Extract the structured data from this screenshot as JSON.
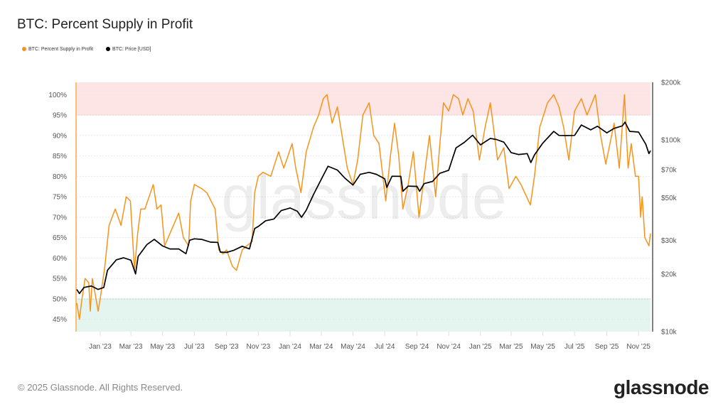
{
  "title": "BTC: Percent Supply in Profit",
  "legend": [
    {
      "label": "BTC: Percent Supply in Profit",
      "color": "#f7931a"
    },
    {
      "label": "BTC: Price [USD]",
      "color": "#000000"
    }
  ],
  "watermark": "glassnode",
  "footer": {
    "copyright": "© 2025 Glassnode. All Rights Reserved.",
    "logo": "glassnode"
  },
  "chart_data": {
    "type": "line",
    "title": "BTC: Percent Supply in Profit",
    "grid": true,
    "legend_position": "top-left",
    "x_range": [
      "2022-11-17",
      "2025-11-24"
    ],
    "x_ticks": [
      "Jan '23",
      "Mar '23",
      "May '23",
      "Jul '23",
      "Sep '23",
      "Nov '23",
      "Jan '24",
      "Mar '24",
      "May '24",
      "Jul '24",
      "Sep '24",
      "Nov '24",
      "Jan '25",
      "Mar '25",
      "May '25",
      "Jul '25",
      "Sep '25",
      "Nov '25"
    ],
    "x_tick_dates": [
      "2023-01-01",
      "2023-03-01",
      "2023-05-01",
      "2023-07-01",
      "2023-09-01",
      "2023-11-01",
      "2024-01-01",
      "2024-03-01",
      "2024-05-01",
      "2024-07-01",
      "2024-09-01",
      "2024-11-01",
      "2025-01-01",
      "2025-03-01",
      "2025-05-01",
      "2025-07-01",
      "2025-09-01",
      "2025-11-01"
    ],
    "y_left": {
      "range": [
        42,
        103
      ],
      "ticks": [
        45,
        50,
        55,
        60,
        65,
        70,
        75,
        80,
        85,
        90,
        95,
        100
      ],
      "tick_labels": [
        "45%",
        "50%",
        "55%",
        "60%",
        "65%",
        "70%",
        "75%",
        "80%",
        "85%",
        "90%",
        "95%",
        "100%"
      ]
    },
    "y_right": {
      "scale": "log",
      "range": [
        10000,
        200000
      ],
      "ticks": [
        10000,
        20000,
        30000,
        50000,
        70000,
        100000,
        200000
      ],
      "tick_labels": [
        "$10k",
        "$20k",
        "$30k",
        "$50k",
        "$70k",
        "$100k",
        "$200k"
      ]
    },
    "bands": [
      {
        "axis": "left",
        "from": 95,
        "to": 103,
        "color": "#fde5e5",
        "edge": "#f7c6c6"
      },
      {
        "axis": "left",
        "from": 42,
        "to": 50,
        "color": "#e4f5ef",
        "edge": "#9edcc6"
      }
    ],
    "series": [
      {
        "name": "BTC: Percent Supply in Profit",
        "axis": "left",
        "color": "#f7931a",
        "points": [
          [
            "2022-11-17",
            49
          ],
          [
            "2022-11-22",
            45
          ],
          [
            "2022-11-27",
            50
          ],
          [
            "2022-12-03",
            55
          ],
          [
            "2022-12-10",
            54
          ],
          [
            "2022-12-13",
            47
          ],
          [
            "2022-12-17",
            55
          ],
          [
            "2022-12-24",
            50
          ],
          [
            "2022-12-28",
            47
          ],
          [
            "2023-01-01",
            50
          ],
          [
            "2023-01-10",
            58
          ],
          [
            "2023-01-18",
            68
          ],
          [
            "2023-01-30",
            72
          ],
          [
            "2023-02-10",
            68
          ],
          [
            "2023-02-20",
            75
          ],
          [
            "2023-02-28",
            74
          ],
          [
            "2023-03-08",
            57
          ],
          [
            "2023-03-14",
            66
          ],
          [
            "2023-03-20",
            72
          ],
          [
            "2023-03-28",
            72
          ],
          [
            "2023-04-13",
            78
          ],
          [
            "2023-04-20",
            72
          ],
          [
            "2023-04-28",
            73
          ],
          [
            "2023-05-05",
            63
          ],
          [
            "2023-05-15",
            66
          ],
          [
            "2023-06-01",
            71
          ],
          [
            "2023-06-10",
            65
          ],
          [
            "2023-06-20",
            63
          ],
          [
            "2023-06-24",
            74
          ],
          [
            "2023-07-01",
            78
          ],
          [
            "2023-07-15",
            77
          ],
          [
            "2023-07-25",
            76
          ],
          [
            "2023-08-10",
            72
          ],
          [
            "2023-08-17",
            62
          ],
          [
            "2023-08-25",
            61
          ],
          [
            "2023-09-01",
            62
          ],
          [
            "2023-09-12",
            58
          ],
          [
            "2023-09-20",
            57
          ],
          [
            "2023-10-01",
            62
          ],
          [
            "2023-10-10",
            63
          ],
          [
            "2023-10-20",
            64
          ],
          [
            "2023-10-25",
            76
          ],
          [
            "2023-11-01",
            80
          ],
          [
            "2023-11-10",
            81
          ],
          [
            "2023-11-25",
            80
          ],
          [
            "2023-12-05",
            84
          ],
          [
            "2023-12-10",
            86
          ],
          [
            "2023-12-20",
            82
          ],
          [
            "2024-01-05",
            88
          ],
          [
            "2024-01-12",
            82
          ],
          [
            "2024-01-22",
            76
          ],
          [
            "2024-02-01",
            86
          ],
          [
            "2024-02-15",
            92
          ],
          [
            "2024-02-25",
            95
          ],
          [
            "2024-03-05",
            99
          ],
          [
            "2024-03-12",
            100
          ],
          [
            "2024-03-22",
            93
          ],
          [
            "2024-04-01",
            97
          ],
          [
            "2024-04-15",
            86
          ],
          [
            "2024-04-20",
            82
          ],
          [
            "2024-05-01",
            78
          ],
          [
            "2024-05-10",
            84
          ],
          [
            "2024-05-20",
            95
          ],
          [
            "2024-06-01",
            98
          ],
          [
            "2024-06-10",
            90
          ],
          [
            "2024-06-20",
            88
          ],
          [
            "2024-07-03",
            74
          ],
          [
            "2024-07-12",
            85
          ],
          [
            "2024-07-20",
            93
          ],
          [
            "2024-07-28",
            85
          ],
          [
            "2024-08-05",
            72
          ],
          [
            "2024-08-15",
            78
          ],
          [
            "2024-08-25",
            86
          ],
          [
            "2024-09-05",
            70
          ],
          [
            "2024-09-15",
            80
          ],
          [
            "2024-09-25",
            90
          ],
          [
            "2024-10-07",
            75
          ],
          [
            "2024-10-15",
            88
          ],
          [
            "2024-10-22",
            98
          ],
          [
            "2024-11-01",
            96
          ],
          [
            "2024-11-10",
            100
          ],
          [
            "2024-11-20",
            99
          ],
          [
            "2024-11-28",
            95
          ],
          [
            "2024-12-08",
            99
          ],
          [
            "2024-12-18",
            96
          ],
          [
            "2024-12-30",
            84
          ],
          [
            "2025-01-10",
            92
          ],
          [
            "2025-01-20",
            98
          ],
          [
            "2025-02-03",
            84
          ],
          [
            "2025-02-15",
            87
          ],
          [
            "2025-02-25",
            77
          ],
          [
            "2025-03-10",
            80
          ],
          [
            "2025-03-20",
            78
          ],
          [
            "2025-04-07",
            73
          ],
          [
            "2025-04-15",
            80
          ],
          [
            "2025-04-25",
            92
          ],
          [
            "2025-05-10",
            98
          ],
          [
            "2025-05-22",
            100
          ],
          [
            "2025-06-01",
            97
          ],
          [
            "2025-06-10",
            92
          ],
          [
            "2025-06-20",
            84
          ],
          [
            "2025-07-01",
            96
          ],
          [
            "2025-07-14",
            99
          ],
          [
            "2025-07-25",
            95
          ],
          [
            "2025-08-10",
            100
          ],
          [
            "2025-08-20",
            90
          ],
          [
            "2025-08-30",
            83
          ],
          [
            "2025-09-15",
            93
          ],
          [
            "2025-09-25",
            82
          ],
          [
            "2025-10-05",
            100
          ],
          [
            "2025-10-12",
            82
          ],
          [
            "2025-10-18",
            88
          ],
          [
            "2025-10-26",
            80
          ],
          [
            "2025-11-01",
            80
          ],
          [
            "2025-11-05",
            70
          ],
          [
            "2025-11-08",
            75
          ],
          [
            "2025-11-13",
            65
          ],
          [
            "2025-11-21",
            63
          ],
          [
            "2025-11-24",
            66
          ]
        ]
      },
      {
        "name": "BTC: Price [USD]",
        "axis": "right",
        "color": "#000000",
        "points": [
          [
            "2022-11-17",
            16600
          ],
          [
            "2022-11-22",
            15800
          ],
          [
            "2022-12-01",
            17000
          ],
          [
            "2022-12-15",
            17300
          ],
          [
            "2022-12-28",
            16600
          ],
          [
            "2023-01-08",
            17000
          ],
          [
            "2023-01-15",
            20900
          ],
          [
            "2023-02-01",
            23700
          ],
          [
            "2023-02-15",
            24300
          ],
          [
            "2023-03-01",
            23600
          ],
          [
            "2023-03-10",
            20000
          ],
          [
            "2023-03-15",
            24700
          ],
          [
            "2023-04-01",
            28500
          ],
          [
            "2023-04-15",
            30300
          ],
          [
            "2023-05-01",
            28000
          ],
          [
            "2023-05-15",
            27000
          ],
          [
            "2023-06-01",
            27000
          ],
          [
            "2023-06-15",
            25500
          ],
          [
            "2023-06-22",
            30000
          ],
          [
            "2023-07-01",
            30500
          ],
          [
            "2023-07-15",
            30300
          ],
          [
            "2023-08-01",
            29300
          ],
          [
            "2023-08-15",
            29200
          ],
          [
            "2023-08-20",
            26000
          ],
          [
            "2023-09-01",
            25900
          ],
          [
            "2023-09-15",
            26600
          ],
          [
            "2023-10-01",
            27900
          ],
          [
            "2023-10-15",
            27000
          ],
          [
            "2023-10-25",
            34500
          ],
          [
            "2023-11-01",
            35400
          ],
          [
            "2023-11-15",
            37900
          ],
          [
            "2023-12-01",
            38700
          ],
          [
            "2023-12-15",
            42800
          ],
          [
            "2024-01-01",
            44200
          ],
          [
            "2024-01-15",
            42500
          ],
          [
            "2024-01-23",
            39500
          ],
          [
            "2024-02-01",
            43000
          ],
          [
            "2024-02-15",
            51900
          ],
          [
            "2024-03-01",
            62400
          ],
          [
            "2024-03-14",
            73000
          ],
          [
            "2024-04-01",
            69700
          ],
          [
            "2024-04-15",
            63400
          ],
          [
            "2024-05-01",
            58200
          ],
          [
            "2024-05-15",
            66200
          ],
          [
            "2024-06-01",
            67800
          ],
          [
            "2024-06-15",
            66200
          ],
          [
            "2024-07-01",
            62800
          ],
          [
            "2024-07-05",
            56600
          ],
          [
            "2024-07-15",
            64700
          ],
          [
            "2024-08-01",
            64600
          ],
          [
            "2024-08-05",
            54000
          ],
          [
            "2024-08-15",
            57500
          ],
          [
            "2024-09-01",
            57300
          ],
          [
            "2024-09-06",
            54000
          ],
          [
            "2024-09-15",
            59200
          ],
          [
            "2024-10-01",
            60800
          ],
          [
            "2024-10-15",
            67000
          ],
          [
            "2024-11-01",
            69500
          ],
          [
            "2024-11-15",
            91000
          ],
          [
            "2024-12-01",
            97200
          ],
          [
            "2024-12-17",
            106000
          ],
          [
            "2025-01-01",
            94400
          ],
          [
            "2025-01-20",
            102000
          ],
          [
            "2025-02-01",
            100600
          ],
          [
            "2025-02-15",
            97500
          ],
          [
            "2025-03-01",
            86000
          ],
          [
            "2025-03-15",
            84000
          ],
          [
            "2025-04-01",
            85000
          ],
          [
            "2025-04-08",
            76300
          ],
          [
            "2025-04-15",
            83700
          ],
          [
            "2025-05-01",
            96500
          ],
          [
            "2025-05-22",
            111000
          ],
          [
            "2025-06-01",
            105700
          ],
          [
            "2025-06-15",
            105500
          ],
          [
            "2025-07-01",
            105700
          ],
          [
            "2025-07-14",
            119800
          ],
          [
            "2025-08-01",
            113000
          ],
          [
            "2025-08-14",
            118000
          ],
          [
            "2025-09-01",
            109000
          ],
          [
            "2025-09-15",
            115000
          ],
          [
            "2025-10-01",
            118600
          ],
          [
            "2025-10-06",
            124000
          ],
          [
            "2025-10-15",
            111000
          ],
          [
            "2025-11-01",
            110000
          ],
          [
            "2025-11-15",
            95000
          ],
          [
            "2025-11-21",
            85000
          ],
          [
            "2025-11-24",
            88000
          ]
        ]
      }
    ]
  }
}
